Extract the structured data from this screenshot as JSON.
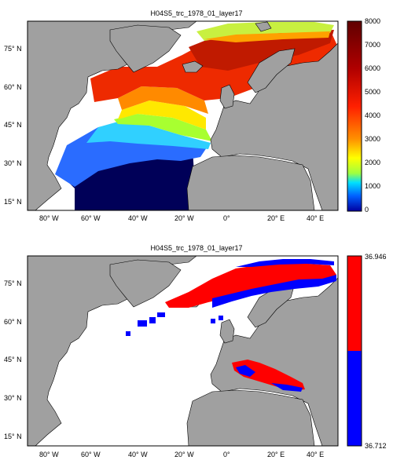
{
  "top_panel": {
    "title": "H04S5_trc_1978_01_layer17",
    "lat_labels": [
      "75° N",
      "60° N",
      "45° N",
      "30° N",
      "15° N"
    ],
    "lon_labels": [
      "80° W",
      "60° W",
      "40° W",
      "20° W",
      "0°",
      "20° E",
      "40° E"
    ],
    "colorbar": {
      "ticks": [
        "8000",
        "7000",
        "6000",
        "5000",
        "4000",
        "3000",
        "2000",
        "1000",
        "0"
      ],
      "range": [
        0,
        8000
      ],
      "colormap": "jet"
    }
  },
  "bottom_panel": {
    "title": "H04S5_trc_1978_01_layer17",
    "lat_labels": [
      "75° N",
      "60° N",
      "45° N",
      "30° N",
      "15° N"
    ],
    "lon_labels": [
      "80° W",
      "60° W",
      "40° W",
      "20° W",
      "0°",
      "20° E",
      "40° E"
    ],
    "colorbar": {
      "max_label": "36.946",
      "min_label": "36.712",
      "upper_color": "#ff0000",
      "lower_color": "#0000ff"
    }
  },
  "colors": {
    "land": "#a0a0a0",
    "ocean_nodata": "#ffffff",
    "coast": "#000000"
  }
}
